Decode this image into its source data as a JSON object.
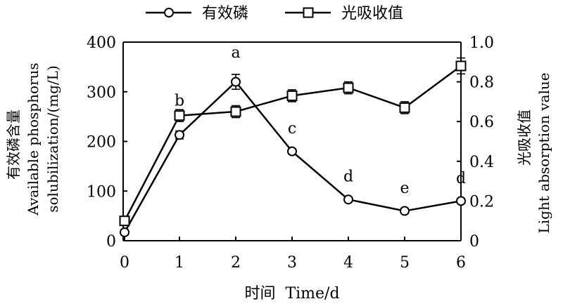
{
  "chart_data": {
    "type": "line",
    "x": [
      0,
      1,
      2,
      3,
      4,
      5,
      6
    ],
    "xlim": [
      0,
      6
    ],
    "xticks": [
      "0",
      "1",
      "2",
      "3",
      "4",
      "5",
      "6"
    ],
    "xlabel": "时间  Time/d",
    "y_left": {
      "label_zh": "有效磷含量",
      "label_en_1": "Available phosphorus",
      "label_en_2": "solubilization/(mg/L)",
      "ylim": [
        0,
        400
      ],
      "ticks": [
        "0",
        "100",
        "200",
        "300",
        "400"
      ]
    },
    "y_right": {
      "label_zh": "光吸收值",
      "label_en": "Light absorption value",
      "ylim": [
        0,
        1.0
      ],
      "ticks": [
        "0",
        "0.2",
        "0.4",
        "0.6",
        "0.8",
        "1.0"
      ]
    },
    "series": [
      {
        "name": "有效磷",
        "axis": "left",
        "marker": "circle",
        "values": [
          17,
          213,
          320,
          180,
          83,
          60,
          80
        ],
        "errors": [
          5,
          8,
          15,
          5,
          5,
          5,
          5
        ],
        "labels": [
          "",
          "b",
          "a",
          "c",
          "d",
          "e",
          "d"
        ]
      },
      {
        "name": "光吸收值",
        "axis": "right",
        "marker": "square",
        "values": [
          0.1,
          0.63,
          0.65,
          0.73,
          0.77,
          0.67,
          0.88
        ],
        "errors": [
          0.02,
          0.03,
          0.03,
          0.03,
          0.03,
          0.03,
          0.04
        ]
      }
    ],
    "legend_position": "top-center",
    "grid": false
  }
}
